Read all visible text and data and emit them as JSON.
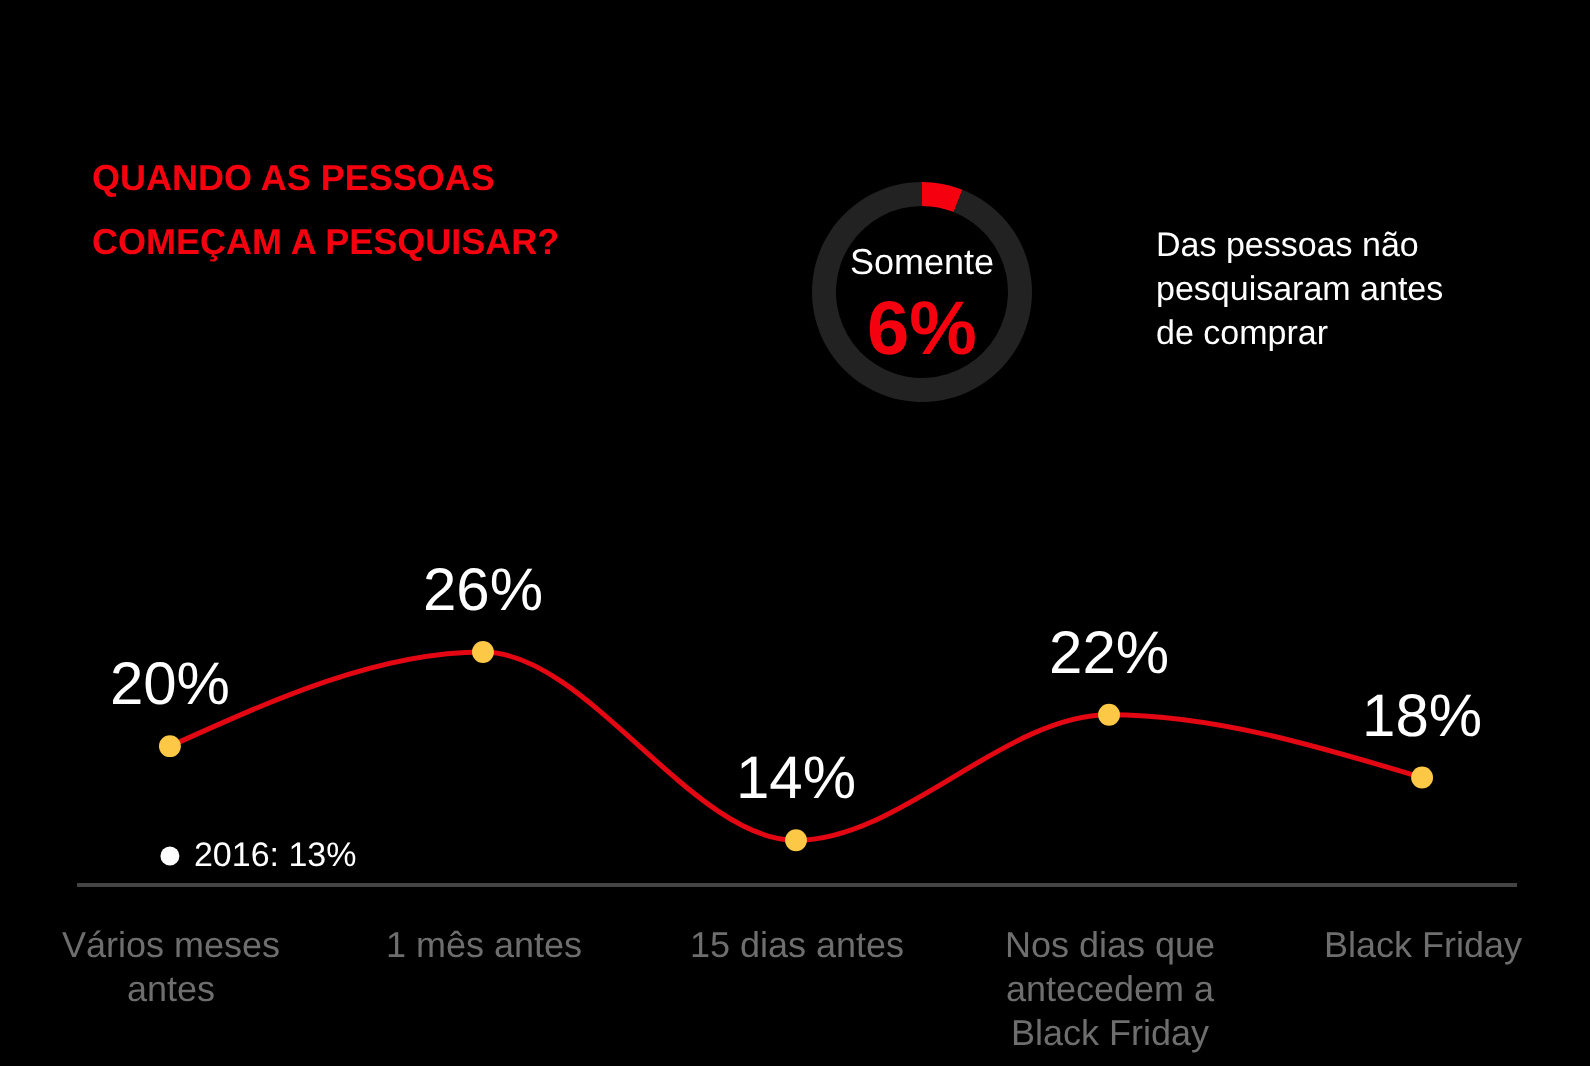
{
  "chart_data": [
    {
      "type": "line",
      "title": "QUANDO AS PESSOAS COMEÇAM A PESQUISAR?",
      "categories": [
        "Vários meses antes",
        "1 mês antes",
        "15 dias antes",
        "Nos dias que antecedem a Black Friday",
        "Black Friday"
      ],
      "series": [
        {
          "color": "#e30613",
          "values": [
            20,
            26,
            14,
            22,
            18
          ],
          "value_labels": [
            "20%",
            "26%",
            "14%",
            "22%",
            "18%"
          ]
        },
        {
          "type": "scatter",
          "color": "#ffffff",
          "values": [
            13,
            null,
            null,
            null,
            null
          ],
          "value_labels": [
            "2016: 13%",
            null,
            null,
            null,
            null
          ]
        }
      ],
      "marker": "circle",
      "line_style": "solid",
      "tick_labels": "x"
    },
    {
      "type": "donut",
      "categories": [
        null,
        null
      ],
      "values": [
        6,
        94
      ],
      "colors": [
        "#f5000f",
        "#222222"
      ],
      "annotations": [
        "Somente",
        "6%",
        "Das pessoas não pesquisaram antes de comprar"
      ]
    }
  ]
}
